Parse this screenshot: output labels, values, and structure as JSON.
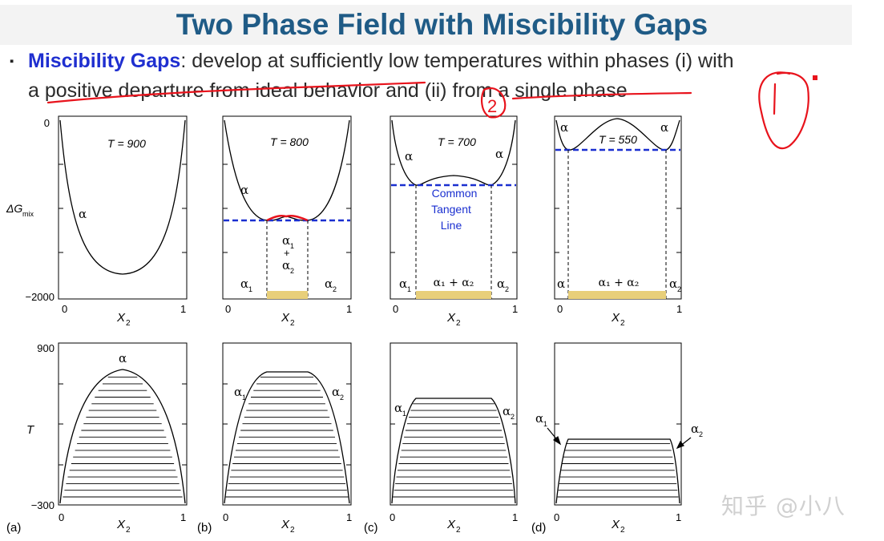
{
  "title": "Two Phase Field with Miscibility Gaps",
  "bullet": {
    "marker": "▪",
    "term": "Miscibility Gaps",
    "text1": ": develop at sufficiently low temperatures within phases (i) with",
    "text2": "a positive departure from ideal behavior and (ii) from a single phase"
  },
  "annotations": {
    "two": "2",
    "one": "1"
  },
  "watermark": "知乎 @小八",
  "top_panels": {
    "y_axis_label_main": "ΔG",
    "y_axis_label_sub": "mix",
    "y_top_tick": "0",
    "y_bottom_tick": "−2000",
    "x_label": "X",
    "x_label_sub": "2",
    "x_tick_0": "0",
    "x_tick_1": "1",
    "panel_a": {
      "temp": "T = 900",
      "phase": "α"
    },
    "panel_b": {
      "temp": "T = 800",
      "left_phase": "α",
      "phase_a": "α",
      "sub1": "1",
      "sub2": "2",
      "plus": "+"
    },
    "panel_c": {
      "temp": "T = 700",
      "alpha": "α",
      "mix": "α₁ + α₂",
      "note1": "Common",
      "note2": "Tangent",
      "note3": "Line"
    },
    "panel_d": {
      "temp": "T = 550",
      "alpha": "α",
      "mix": "α₁ + α₂"
    }
  },
  "bottom_panels": {
    "y_label": "T",
    "y_top_tick": "900",
    "y_bottom_tick": "−300",
    "x_label": "X",
    "x_label_sub": "2",
    "x_tick_0": "0",
    "x_tick_1": "1",
    "panel_labels": [
      "(a)",
      "(b)",
      "(c)",
      "(d)"
    ],
    "alpha": "α",
    "sub1": "1",
    "sub2": "2"
  },
  "colors": {
    "title": "#1f5b86",
    "term": "#1f2fd0",
    "tangent": "#1a2fd0",
    "annotation": "#e8131c",
    "band": "#e8cf7a"
  }
}
